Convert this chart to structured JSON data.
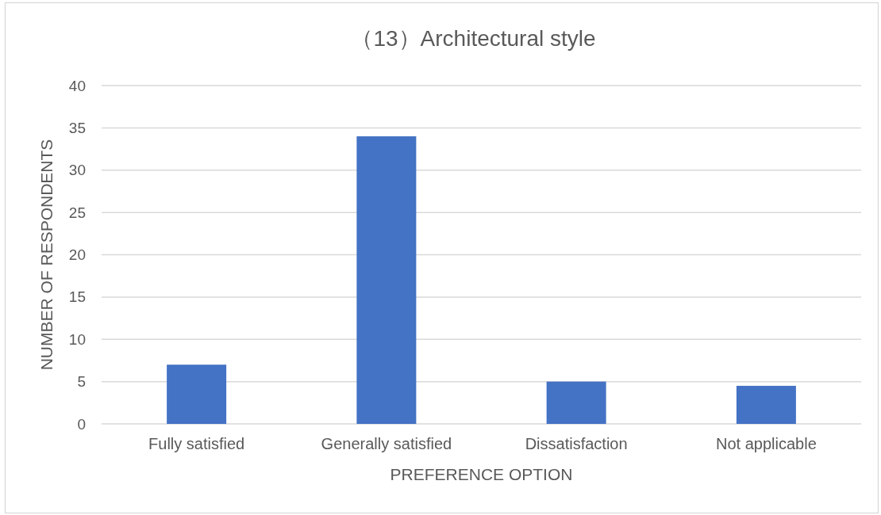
{
  "chart_data": {
    "type": "bar",
    "title": "（13）Architectural style",
    "xlabel": "PREFERENCE OPTION",
    "ylabel": "NUMBER OF RESPONDENTS",
    "categories": [
      "Fully satisfied",
      "Generally satisfied",
      "Dissatisfaction",
      "Not applicable"
    ],
    "values": [
      7,
      34,
      5,
      4.5
    ],
    "color": "#4472c4",
    "ylim": [
      0,
      40
    ],
    "yticks": [
      0,
      5,
      10,
      15,
      20,
      25,
      30,
      35,
      40
    ],
    "grid": "y"
  }
}
